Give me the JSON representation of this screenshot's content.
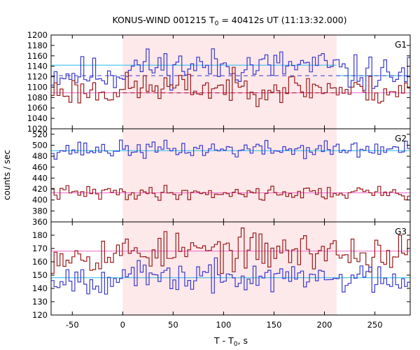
{
  "title": {
    "prefix": "KONUS-WIND 001215 T",
    "sub": "0",
    "suffix": " = 40412s UT (11:13:32.000)"
  },
  "xlabel": {
    "prefix": "T - T",
    "sub": "0",
    "suffix": ", s"
  },
  "ylabel": "counts / sec",
  "colors": {
    "blue_series": "#3a3acf",
    "red_series": "#9b1b1b",
    "blue_bg": "#22bbee",
    "red_bg": "#ee66cc",
    "highlight": "#fde8ea"
  },
  "chart_data": {
    "type": "line",
    "step": true,
    "highlight_interval": [
      0,
      212
    ],
    "xlim": [
      -71,
      285
    ],
    "xticks": [
      -50,
      0,
      50,
      100,
      150,
      200,
      250
    ],
    "bin_width": 2.944,
    "panels": [
      {
        "label": "G1",
        "ylim": [
          1020,
          1200
        ],
        "yticks": [
          1020,
          1040,
          1060,
          1080,
          1100,
          1120,
          1140,
          1160,
          1180,
          1200
        ],
        "backgrounds": [
          {
            "color": "blue",
            "value": 1142,
            "x_range": [
              -71,
              212
            ],
            "style": "solid"
          },
          {
            "color": "blue",
            "value": 1122,
            "x_range": [
              212,
              285
            ],
            "style": "solid"
          },
          {
            "color": "blue",
            "value": 1122,
            "x_range": [
              -71,
              285
            ],
            "style": "dashed"
          },
          {
            "color": "red",
            "value": 1089,
            "x_range": [
              -71,
              285
            ],
            "style": "solid"
          },
          {
            "color": "red",
            "value": 1089,
            "x_range": [
              0,
              212
            ],
            "style": "dashed"
          }
        ],
        "series": [
          {
            "color": "blue",
            "mean": 1125,
            "amplitude": 24,
            "boost": 15,
            "seed": 11
          },
          {
            "color": "red",
            "mean": 1093,
            "amplitude": 20,
            "boost": 6,
            "seed": 23
          }
        ]
      },
      {
        "label": "G2",
        "ylim": [
          360,
          530
        ],
        "yticks": [
          360,
          380,
          400,
          420,
          440,
          460,
          480,
          500,
          520
        ],
        "backgrounds": [
          {
            "color": "blue",
            "value": 490,
            "x_range": [
              -71,
              285
            ],
            "style": "solid"
          },
          {
            "color": "red",
            "value": 413,
            "x_range": [
              -71,
              285
            ],
            "style": "solid"
          }
        ],
        "series": [
          {
            "color": "blue",
            "mean": 492,
            "amplitude": 11,
            "boost": 0,
            "seed": 37
          },
          {
            "color": "red",
            "mean": 413,
            "amplitude": 9,
            "boost": 0,
            "seed": 41
          }
        ]
      },
      {
        "label": "G3",
        "ylim": [
          120,
          190
        ],
        "yticks": [
          120,
          130,
          140,
          150,
          160,
          170,
          180
        ],
        "backgrounds": [
          {
            "color": "blue",
            "value": 148,
            "x_range": [
              -71,
              285
            ],
            "style": "solid"
          },
          {
            "color": "red",
            "value": 168,
            "x_range": [
              -71,
              285
            ],
            "style": "solid"
          }
        ],
        "series": [
          {
            "color": "red",
            "mean": 166,
            "amplitude": 10,
            "boost": 2,
            "seed": 53
          },
          {
            "color": "blue",
            "mean": 148,
            "amplitude": 8,
            "boost": 0,
            "seed": 67
          }
        ]
      }
    ]
  }
}
